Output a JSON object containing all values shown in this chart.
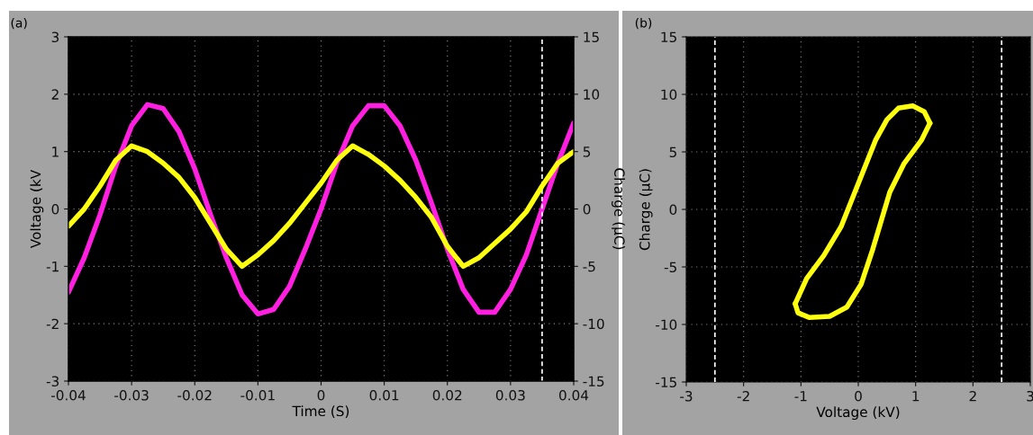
{
  "chart_data": [
    {
      "type": "line",
      "title": "(a)",
      "xlabel": "Time (S)",
      "ylabel": "Voltage (kV",
      "y2label": "Charge (μC)",
      "x": [
        -0.04,
        -0.0375,
        -0.035,
        -0.0325,
        -0.03,
        -0.0275,
        -0.025,
        -0.0225,
        -0.02,
        -0.0175,
        -0.015,
        -0.0125,
        -0.01,
        -0.0075,
        -0.005,
        -0.0025,
        0,
        0.0025,
        0.005,
        0.0075,
        0.01,
        0.0125,
        0.015,
        0.0175,
        0.02,
        0.0225,
        0.025,
        0.0275,
        0.03,
        0.0325,
        0.035,
        0.0375,
        0.04
      ],
      "series": [
        {
          "color": "#ff1fe0",
          "values": [
            -1.45,
            -0.85,
            -0.1,
            0.75,
            1.45,
            1.82,
            1.75,
            1.35,
            0.7,
            -0.1,
            -0.85,
            -1.5,
            -1.83,
            -1.75,
            -1.35,
            -0.7,
            0.0,
            0.8,
            1.45,
            1.8,
            1.8,
            1.45,
            0.85,
            0.1,
            -0.7,
            -1.4,
            -1.8,
            -1.8,
            -1.4,
            -0.8,
            0.0,
            0.8,
            1.5
          ]
        },
        {
          "color": "#ffff10",
          "axis": "y2",
          "values": [
            -1.5,
            0.0,
            2.0,
            4.25,
            5.5,
            5.0,
            4.0,
            2.75,
            1.0,
            -1.25,
            -3.5,
            -5.0,
            -4.0,
            -2.75,
            -1.25,
            0.5,
            2.25,
            4.25,
            5.5,
            4.75,
            3.75,
            2.5,
            1.0,
            -0.75,
            -3.25,
            -5.0,
            -4.25,
            -3.0,
            -1.75,
            -0.25,
            2.0,
            4.0,
            5.0
          ]
        }
      ],
      "xlim": [
        -0.04,
        0.04
      ],
      "xticks": [
        -0.04,
        -0.03,
        -0.02,
        -0.01,
        0,
        0.01,
        0.02,
        0.03,
        0.04
      ],
      "ylim": [
        -3,
        3
      ],
      "yticks": [
        -3,
        -2,
        -1,
        0,
        1,
        2,
        3
      ],
      "y2lim": [
        -15,
        15
      ],
      "y2ticks": [
        -15,
        -10,
        -5,
        0,
        5,
        10,
        15
      ],
      "ref_lines": [
        {
          "axis": "x",
          "value": 0.035,
          "color": "#ffffff",
          "line_style": "dashed"
        }
      ],
      "grid": true,
      "legend": false
    },
    {
      "type": "line",
      "title": "(b)",
      "xlabel": "Voltage (kV)",
      "ylabel": "Charge (μC)",
      "series": [
        {
          "color": "#ffff10",
          "x": [
            -1.1,
            -0.9,
            -0.6,
            -0.3,
            -0.1,
            0.1,
            0.3,
            0.5,
            0.7,
            0.95,
            1.15,
            1.25
          ],
          "values": [
            -8.2,
            -6,
            -4,
            -1.5,
            1,
            3.5,
            6,
            7.8,
            8.8,
            9,
            8.5,
            7.5
          ]
        },
        {
          "color": "#ffff10",
          "x": [
            -1.1,
            -1.05,
            -0.85,
            -0.5,
            -0.2,
            0.05,
            0.25,
            0.4,
            0.55,
            0.8,
            1.1,
            1.25
          ],
          "values": [
            -8.2,
            -9,
            -9.4,
            -9.3,
            -8.5,
            -6.5,
            -3.5,
            -1,
            1.5,
            4,
            6,
            7.5
          ]
        }
      ],
      "xlim": [
        -3,
        3
      ],
      "xticks": [
        -3,
        -2,
        -1,
        0,
        1,
        2,
        3
      ],
      "ylim": [
        -15,
        15
      ],
      "yticks": [
        -15,
        -10,
        -5,
        0,
        5,
        10,
        15
      ],
      "ref_lines": [
        {
          "axis": "x",
          "value": -2.5,
          "color": "#ffffff",
          "line_style": "dashed"
        },
        {
          "axis": "x",
          "value": 2.5,
          "color": "#ffffff",
          "line_style": "dashed"
        }
      ],
      "grid": true,
      "legend": false
    }
  ]
}
